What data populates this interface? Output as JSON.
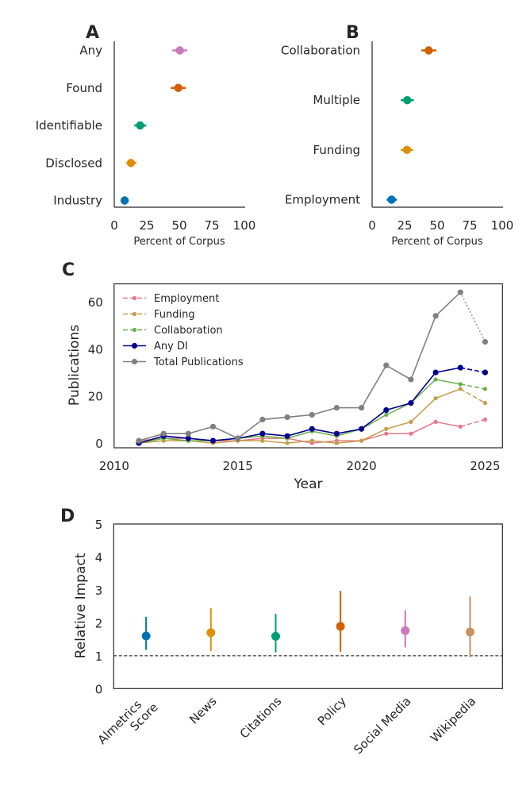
{
  "chart_data": [
    {
      "panel": "A",
      "type": "scatter",
      "orientation": "horizontal-dot-with-errorbar",
      "title": "",
      "xlabel": "Percent of Corpus",
      "ylabel": "",
      "xlim": [
        0,
        100
      ],
      "xticks": [
        0,
        25,
        50,
        75,
        100
      ],
      "categories": [
        "Any",
        "Found",
        "Identifiable",
        "Disclosed",
        "Industry"
      ],
      "values": [
        50.4,
        49.2,
        19.9,
        12.8,
        8.0
      ],
      "ci_low": [
        44.7,
        43.5,
        15.4,
        9.3,
        6.0
      ],
      "ci_high": [
        56.1,
        55.1,
        24.6,
        16.9,
        10.0
      ],
      "colors": [
        "#cc78bc",
        "#d55e00",
        "#029e73",
        "#de8f05",
        "#0173b2"
      ]
    },
    {
      "panel": "B",
      "type": "scatter",
      "orientation": "horizontal-dot-with-errorbar",
      "title": "",
      "xlabel": "Percent of Corpus",
      "ylabel": "",
      "xlim": [
        0,
        100
      ],
      "xticks": [
        0,
        25,
        50,
        75,
        100
      ],
      "categories": [
        "Collaboration",
        "Multiple",
        "Funding",
        "Employment"
      ],
      "values": [
        43.5,
        27.0,
        26.8,
        15.0
      ],
      "ci_low": [
        37.8,
        22.0,
        22.0,
        11.2
      ],
      "ci_high": [
        49.4,
        32.1,
        31.5,
        19.1
      ],
      "colors": [
        "#d55e00",
        "#029e73",
        "#de8f05",
        "#0173b2"
      ]
    },
    {
      "panel": "C",
      "type": "line",
      "title": "",
      "xlabel": "Year",
      "ylabel": "Publications",
      "xlim": [
        2010,
        2025.7
      ],
      "ylim": [
        -2,
        67.6
      ],
      "xticks": [
        2010,
        2015,
        2020,
        2025
      ],
      "yticks": [
        0,
        20,
        40,
        60
      ],
      "x": [
        2011,
        2012,
        2013,
        2014,
        2015,
        2016,
        2017,
        2018,
        2019,
        2020,
        2021,
        2022,
        2023,
        2024,
        2025
      ],
      "legend_position": "top-left",
      "note": "Segment 2024-2025 drawn dashed (dotted for Total Publications)",
      "series": [
        {
          "name": "Employment",
          "color": "#e8778a",
          "marker_size": "small",
          "values": [
            1,
            2,
            2,
            1,
            1,
            2,
            2,
            0,
            1,
            1,
            4,
            4,
            9,
            7,
            10
          ]
        },
        {
          "name": "Funding",
          "color": "#c49c48",
          "marker_size": "small",
          "values": [
            0,
            1,
            1,
            0,
            1,
            1,
            0,
            1,
            0,
            1,
            6,
            9,
            19,
            23,
            17
          ]
        },
        {
          "name": "Collaboration",
          "color": "#6ab04c",
          "marker_size": "small",
          "values": [
            0,
            2,
            1,
            1,
            2,
            3,
            2,
            5,
            3,
            6,
            12,
            17,
            27,
            25,
            23
          ]
        },
        {
          "name": "Any DI",
          "color": "#00008b",
          "marker_size": "large",
          "values": [
            0,
            3,
            2,
            1,
            2,
            4,
            3,
            6,
            4,
            6,
            14,
            17,
            30,
            32,
            30
          ]
        },
        {
          "name": "Total Publications",
          "color": "#808080",
          "marker_size": "large",
          "values": [
            1,
            4,
            4,
            7,
            2,
            10,
            11,
            12,
            15,
            15,
            33,
            27,
            54,
            64,
            43
          ]
        }
      ]
    },
    {
      "panel": "D",
      "type": "scatter",
      "orientation": "vertical-dot-with-errorbar",
      "title": "",
      "xlabel": "",
      "ylabel": "Relative Impact",
      "ylim": [
        0,
        5
      ],
      "yticks": [
        0,
        1,
        2,
        3,
        4,
        5
      ],
      "reference_line": {
        "y": 1,
        "style": "dashed"
      },
      "categories": [
        "Almetrics\nScore",
        "News",
        "Citations",
        "Policy",
        "Social Media",
        "Wikipedia"
      ],
      "values": [
        1.6,
        1.7,
        1.59,
        1.89,
        1.76,
        1.72
      ],
      "ci_low": [
        1.18,
        1.14,
        1.1,
        1.12,
        1.25,
        0.95
      ],
      "ci_high": [
        2.18,
        2.44,
        2.27,
        2.97,
        2.38,
        2.8
      ],
      "colors": [
        "#0173b2",
        "#de8f05",
        "#029e73",
        "#d55e00",
        "#cc78bc",
        "#ca9161"
      ]
    }
  ],
  "panel_letters": {
    "a": "A",
    "b": "B",
    "c": "C",
    "d": "D"
  }
}
